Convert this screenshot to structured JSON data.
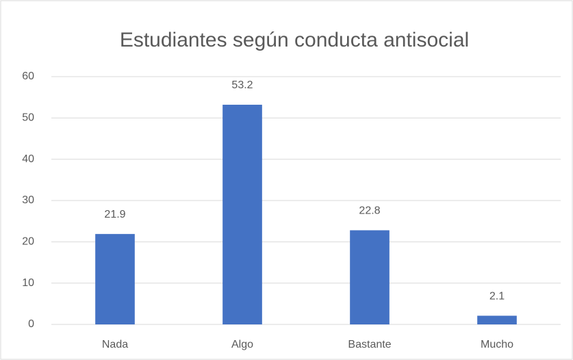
{
  "chart_data": {
    "type": "bar",
    "title": "Estudiantes según conducta antisocial",
    "categories": [
      "Nada",
      "Algo",
      "Bastante",
      "Mucho"
    ],
    "values": [
      21.9,
      53.2,
      22.8,
      2.1
    ],
    "color": "#4472c4",
    "ylim": [
      0,
      60
    ],
    "yticks": [
      0,
      10,
      20,
      30,
      40,
      50,
      60
    ],
    "grid": true,
    "data_labels": true
  }
}
